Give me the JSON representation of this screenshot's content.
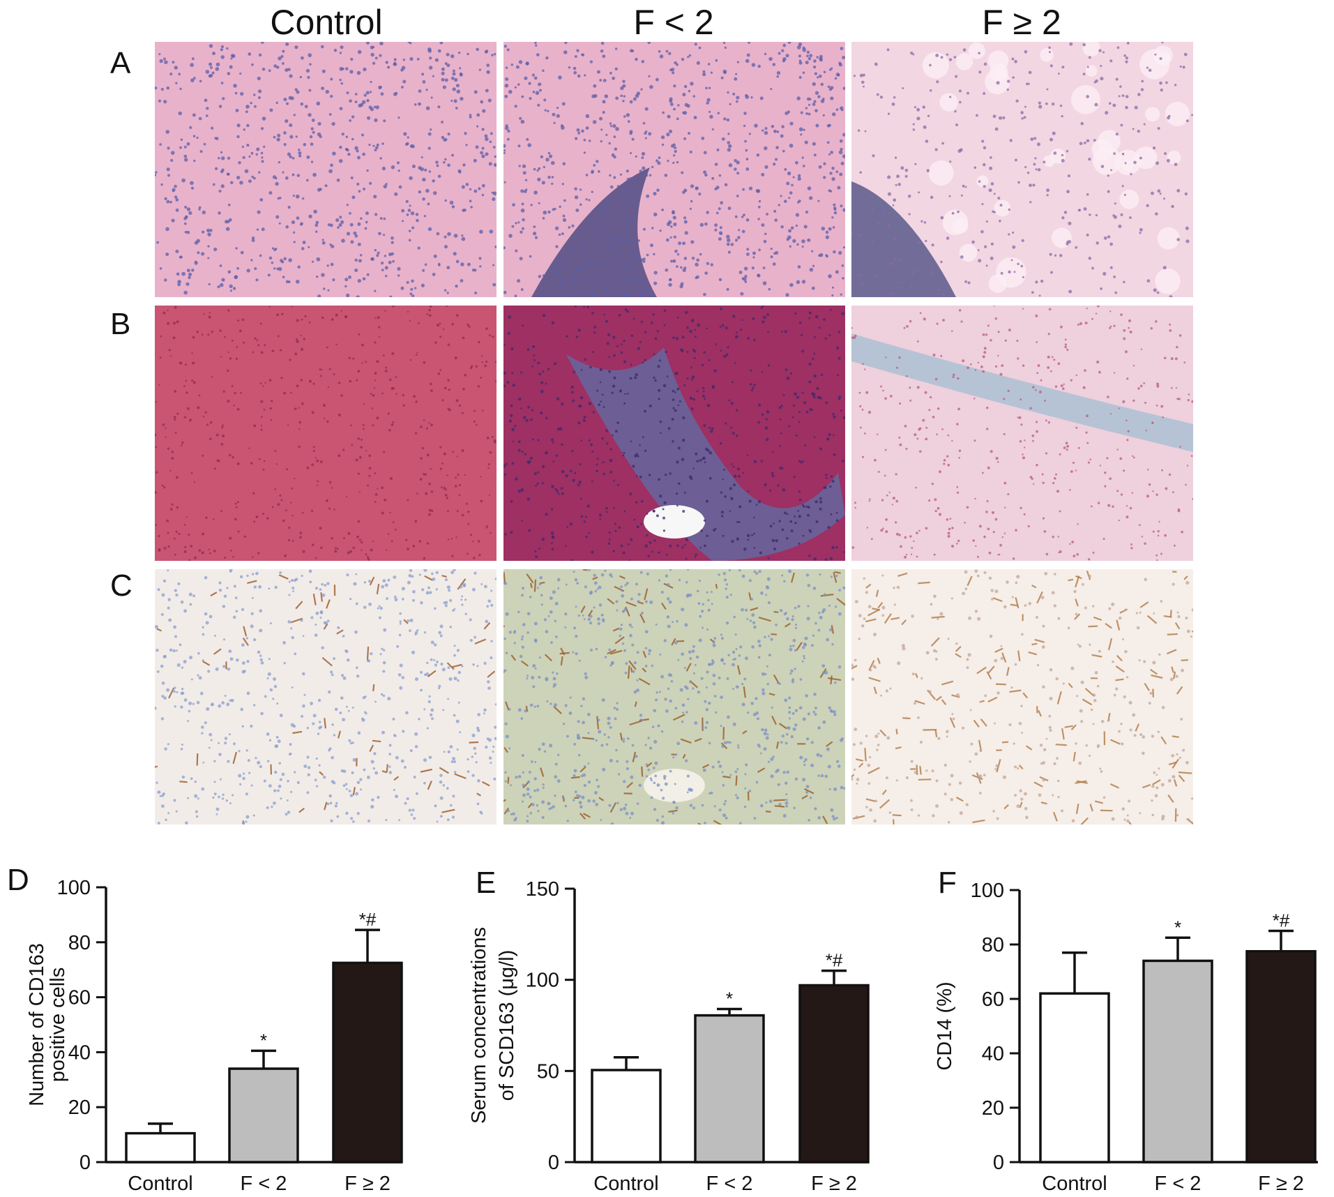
{
  "figure": {
    "columns": [
      "Control",
      "F < 2",
      "F ≥ 2"
    ],
    "rows": [
      "A",
      "B",
      "C"
    ]
  },
  "colors": {
    "he_stain": "#e9b2cb",
    "he_nuclei": "#5a5fa8",
    "trichrome_red": "#c95573",
    "trichrome_blue": "#4c7fb8",
    "ihc_background": "#f2ece8",
    "ihc_brown": "#9a5c2c",
    "ihc_blue": "#8a9fd0",
    "bar_control": "#ffffff",
    "bar_f_lt2": "#bdbdbd",
    "bar_f_ge2": "#231815"
  },
  "chart_data": [
    {
      "type": "bar",
      "panel": "D",
      "categories": [
        "Control",
        "F < 2",
        "F ≥ 2"
      ],
      "values": [
        10.5,
        34,
        72.5
      ],
      "errors": [
        3.5,
        6.5,
        12
      ],
      "annotations": [
        "",
        "*",
        "*#"
      ],
      "ylabel": [
        "Number of CD163",
        "positive cells"
      ],
      "ylim": [
        0,
        100
      ],
      "yticks": [
        0,
        20,
        40,
        60,
        80,
        100
      ]
    },
    {
      "type": "bar",
      "panel": "E",
      "categories": [
        "Control",
        "F < 2",
        "F ≥ 2"
      ],
      "values": [
        50.5,
        80.5,
        97
      ],
      "errors": [
        7,
        3.5,
        8
      ],
      "annotations": [
        "",
        "*",
        "*#"
      ],
      "ylabel": [
        "Serum concentrations",
        "of SCD163 (μg/l)"
      ],
      "ylim": [
        0,
        150
      ],
      "yticks": [
        0,
        50,
        100,
        150
      ]
    },
    {
      "type": "bar",
      "panel": "F",
      "categories": [
        "Control",
        "F < 2",
        "F ≥ 2"
      ],
      "values": [
        62,
        74,
        77.5
      ],
      "errors": [
        15,
        8.5,
        7.5
      ],
      "annotations": [
        "",
        "*",
        "*#"
      ],
      "ylabel": [
        "CD14 (%)"
      ],
      "ylim": [
        0,
        100
      ],
      "yticks": [
        0,
        20,
        40,
        60,
        80,
        100
      ]
    }
  ]
}
